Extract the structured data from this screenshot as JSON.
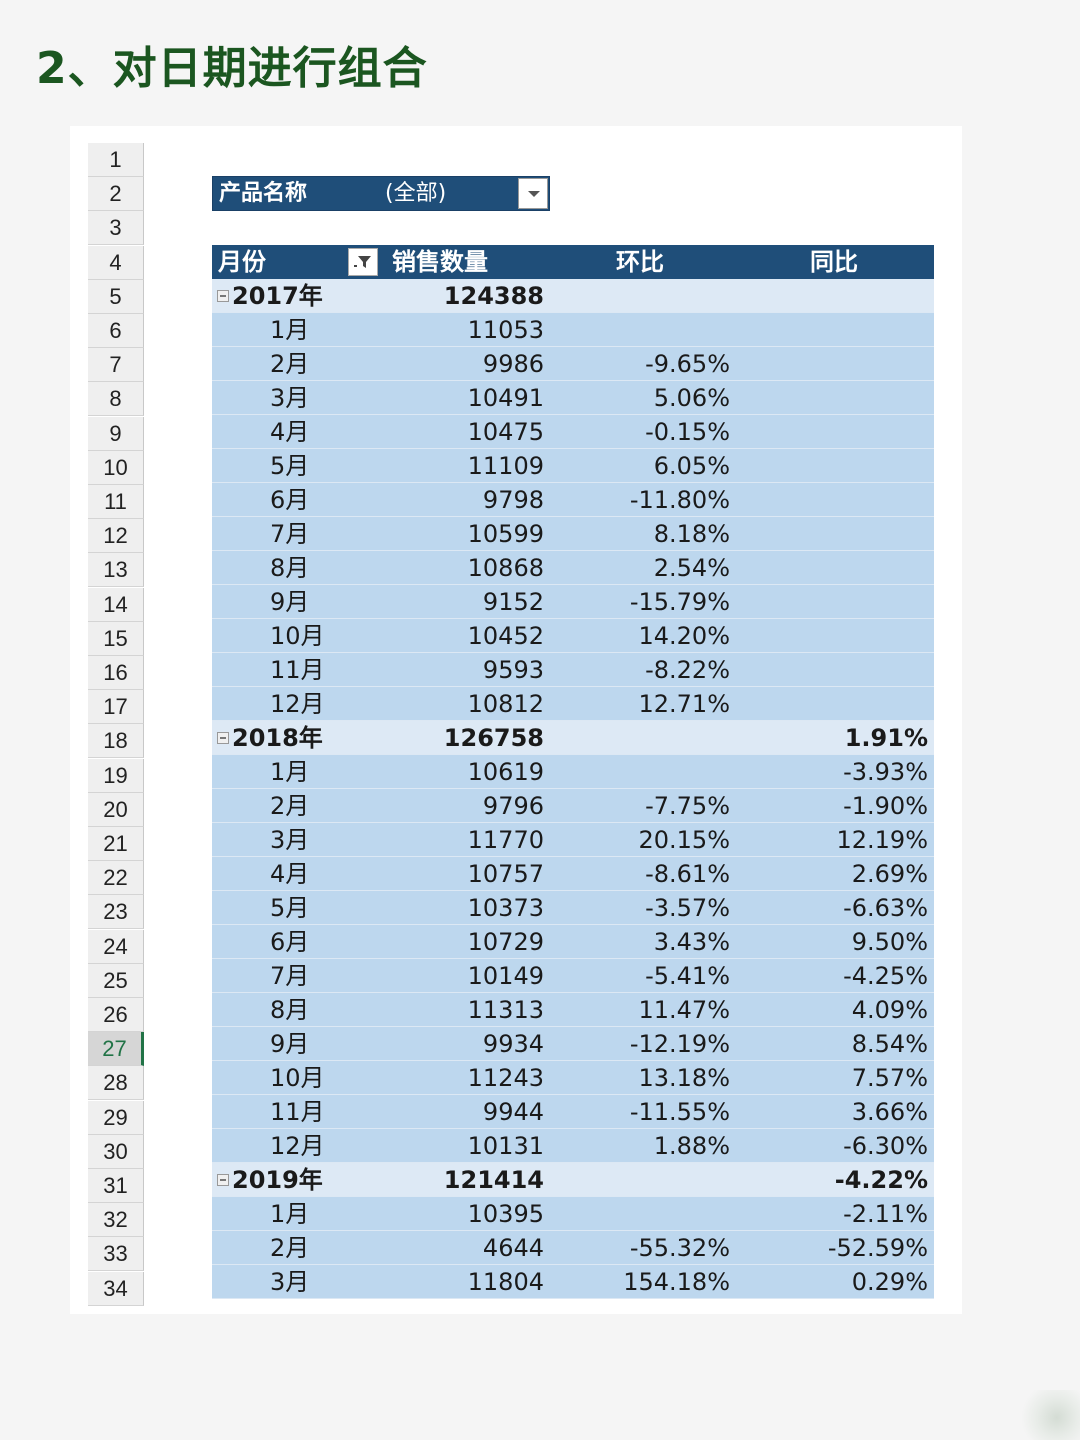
{
  "page": {
    "title": "2、对日期进行组合"
  },
  "sheet": {
    "row_numbers": [
      "1",
      "2",
      "3",
      "4",
      "5",
      "6",
      "7",
      "8",
      "9",
      "10",
      "11",
      "12",
      "13",
      "14",
      "15",
      "16",
      "17",
      "18",
      "19",
      "20",
      "21",
      "22",
      "23",
      "24",
      "25",
      "26",
      "27",
      "28",
      "29",
      "30",
      "31",
      "32",
      "33",
      "34"
    ],
    "active_row": "27"
  },
  "report_filter": {
    "label": "产品名称",
    "value": "(全部)",
    "dropdown_icon": "chevron-down-icon"
  },
  "pivot": {
    "headers": {
      "label": "月份",
      "sales": "销售数量",
      "mom": "环比",
      "yoy": "同比",
      "filter_icon": "filter-icon"
    },
    "rows": [
      {
        "type": "year",
        "label": "2017年",
        "sales": "124388",
        "mom": "",
        "yoy": ""
      },
      {
        "type": "month",
        "label": "1月",
        "sales": "11053",
        "mom": "",
        "yoy": ""
      },
      {
        "type": "month",
        "label": "2月",
        "sales": "9986",
        "mom": "-9.65%",
        "yoy": ""
      },
      {
        "type": "month",
        "label": "3月",
        "sales": "10491",
        "mom": "5.06%",
        "yoy": ""
      },
      {
        "type": "month",
        "label": "4月",
        "sales": "10475",
        "mom": "-0.15%",
        "yoy": ""
      },
      {
        "type": "month",
        "label": "5月",
        "sales": "11109",
        "mom": "6.05%",
        "yoy": ""
      },
      {
        "type": "month",
        "label": "6月",
        "sales": "9798",
        "mom": "-11.80%",
        "yoy": ""
      },
      {
        "type": "month",
        "label": "7月",
        "sales": "10599",
        "mom": "8.18%",
        "yoy": ""
      },
      {
        "type": "month",
        "label": "8月",
        "sales": "10868",
        "mom": "2.54%",
        "yoy": ""
      },
      {
        "type": "month",
        "label": "9月",
        "sales": "9152",
        "mom": "-15.79%",
        "yoy": ""
      },
      {
        "type": "month",
        "label": "10月",
        "sales": "10452",
        "mom": "14.20%",
        "yoy": ""
      },
      {
        "type": "month",
        "label": "11月",
        "sales": "9593",
        "mom": "-8.22%",
        "yoy": ""
      },
      {
        "type": "month",
        "label": "12月",
        "sales": "10812",
        "mom": "12.71%",
        "yoy": ""
      },
      {
        "type": "year",
        "label": "2018年",
        "sales": "126758",
        "mom": "",
        "yoy": "1.91%"
      },
      {
        "type": "month",
        "label": "1月",
        "sales": "10619",
        "mom": "",
        "yoy": "-3.93%"
      },
      {
        "type": "month",
        "label": "2月",
        "sales": "9796",
        "mom": "-7.75%",
        "yoy": "-1.90%"
      },
      {
        "type": "month",
        "label": "3月",
        "sales": "11770",
        "mom": "20.15%",
        "yoy": "12.19%"
      },
      {
        "type": "month",
        "label": "4月",
        "sales": "10757",
        "mom": "-8.61%",
        "yoy": "2.69%"
      },
      {
        "type": "month",
        "label": "5月",
        "sales": "10373",
        "mom": "-3.57%",
        "yoy": "-6.63%"
      },
      {
        "type": "month",
        "label": "6月",
        "sales": "10729",
        "mom": "3.43%",
        "yoy": "9.50%"
      },
      {
        "type": "month",
        "label": "7月",
        "sales": "10149",
        "mom": "-5.41%",
        "yoy": "-4.25%"
      },
      {
        "type": "month",
        "label": "8月",
        "sales": "11313",
        "mom": "11.47%",
        "yoy": "4.09%"
      },
      {
        "type": "month",
        "label": "9月",
        "sales": "9934",
        "mom": "-12.19%",
        "yoy": "8.54%"
      },
      {
        "type": "month",
        "label": "10月",
        "sales": "11243",
        "mom": "13.18%",
        "yoy": "7.57%"
      },
      {
        "type": "month",
        "label": "11月",
        "sales": "9944",
        "mom": "-11.55%",
        "yoy": "3.66%"
      },
      {
        "type": "month",
        "label": "12月",
        "sales": "10131",
        "mom": "1.88%",
        "yoy": "-6.30%"
      },
      {
        "type": "year",
        "label": "2019年",
        "sales": "121414",
        "mom": "",
        "yoy": "-4.22%"
      },
      {
        "type": "month",
        "label": "1月",
        "sales": "10395",
        "mom": "",
        "yoy": "-2.11%"
      },
      {
        "type": "month",
        "label": "2月",
        "sales": "4644",
        "mom": "-55.32%",
        "yoy": "-52.59%"
      },
      {
        "type": "month",
        "label": "3月",
        "sales": "11804",
        "mom": "154.18%",
        "yoy": "0.29%"
      }
    ]
  },
  "colors": {
    "title_green": "#1b5620",
    "header_blue": "#1f4e79",
    "year_row": "#dde9f5",
    "month_row": "#bdd7ee",
    "active_row_accent": "#217346"
  }
}
